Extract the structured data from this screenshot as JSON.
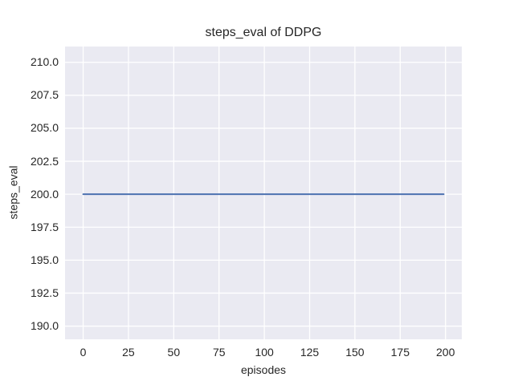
{
  "figure": {
    "background": "#ffffff"
  },
  "chart_data": {
    "type": "line",
    "title": "steps_eval of DDPG",
    "xlabel": "episodes",
    "ylabel": "steps_eval",
    "xlim": [
      -10,
      209
    ],
    "ylim": [
      189.0,
      211.2
    ],
    "xticks": [
      0,
      25,
      50,
      75,
      100,
      125,
      150,
      175,
      200
    ],
    "xtick_labels": [
      "0",
      "25",
      "50",
      "75",
      "100",
      "125",
      "150",
      "175",
      "200"
    ],
    "yticks": [
      210.0,
      207.5,
      205.0,
      202.5,
      200.0,
      197.5,
      195.0,
      192.5,
      190.0
    ],
    "ytick_labels": [
      "210.0",
      "207.5",
      "205.0",
      "202.5",
      "200.0",
      "197.5",
      "195.0",
      "192.5",
      "190.0"
    ],
    "grid": true,
    "legend_position": "none",
    "series": [
      {
        "name": "steps_eval",
        "color": "#4c72b0",
        "x": [
          0,
          199
        ],
        "y": [
          200,
          200
        ]
      }
    ],
    "colors": {
      "plot_bg": "#eaeaf2",
      "grid": "#ffffff",
      "text": "#262626",
      "line": "#4c72b0"
    }
  }
}
